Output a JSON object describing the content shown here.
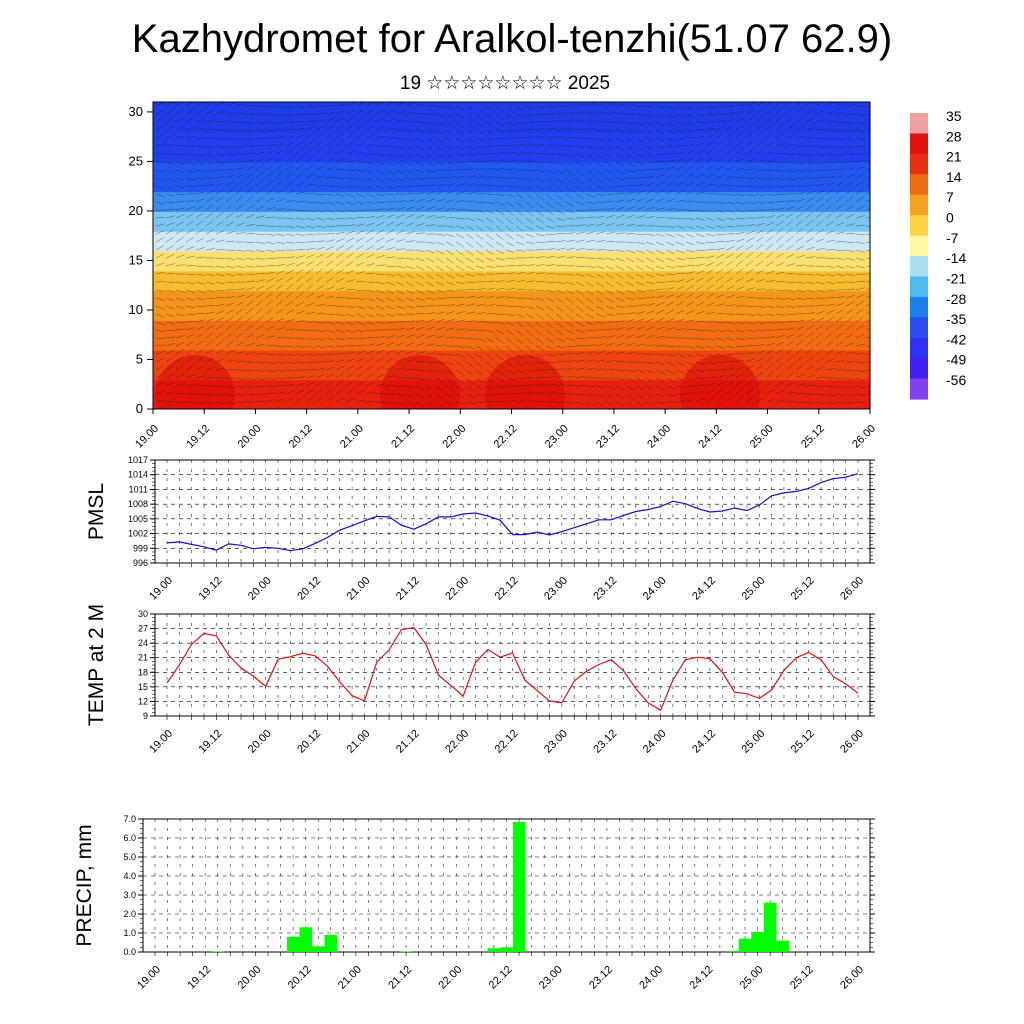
{
  "title": "Kazhydromet for Aralkol-tenzhi(51.07 62.9)",
  "subtitle": "19 ☆☆☆☆☆☆☆☆ 2025",
  "chart_data": [
    {
      "type": "heatmap",
      "description_units": "temperature contours with wind barbs",
      "ylim": [
        0,
        31
      ],
      "y_ticks": [
        0,
        5,
        10,
        15,
        20,
        25,
        30
      ],
      "x_ticks": [
        "19.00",
        "19.12",
        "20.00",
        "20.12",
        "21.00",
        "21.12",
        "22.00",
        "22.12",
        "23.00",
        "23.12",
        "24.00",
        "24.12",
        "25.00",
        "25.12",
        "26.00"
      ],
      "colorbar_labels": [
        "35",
        "28",
        "21",
        "14",
        "7",
        "0",
        "-7",
        "-14",
        "-21",
        "-28",
        "-35",
        "-42",
        "-49",
        "-56"
      ],
      "colorbar_colors": [
        "#f0a0a0",
        "#e01010",
        "#e83010",
        "#ee6a10",
        "#f8a020",
        "#fcd040",
        "#fff8a0",
        "#a8e0f0",
        "#50b8f0",
        "#1a80ee",
        "#2a4ef0",
        "#3030f0",
        "#4020f0",
        "#8040f0"
      ]
    },
    {
      "type": "line",
      "ylabel": "PMSL",
      "ylim": [
        996,
        1017
      ],
      "y_ticks": [
        "996",
        "999",
        "1002",
        "1005",
        "1008",
        "1011",
        "1014",
        "1017"
      ],
      "x_ticks": [
        "19.00",
        "19.12",
        "20.00",
        "20.12",
        "21.00",
        "21.12",
        "22.00",
        "22.12",
        "23.00",
        "23.12",
        "24.00",
        "24.12",
        "25.00",
        "25.12",
        "26.00"
      ],
      "color": "#1010d0",
      "values": [
        1000.1,
        1000.3,
        999.8,
        999.3,
        998.6,
        999.9,
        999.6,
        998.9,
        999.2,
        999.0,
        998.5,
        998.9,
        1000.0,
        1001.2,
        1002.7,
        1003.6,
        1004.6,
        1005.5,
        1005.4,
        1003.7,
        1002.9,
        1004.0,
        1005.4,
        1005.4,
        1006.0,
        1006.2,
        1005.6,
        1004.7,
        1001.8,
        1001.8,
        1002.3,
        1001.7,
        1002.4,
        1003.2,
        1004.0,
        1004.8,
        1004.8,
        1005.7,
        1006.5,
        1006.9,
        1007.5,
        1008.6,
        1008.1,
        1007.1,
        1006.4,
        1006.6,
        1007.2,
        1006.7,
        1007.8,
        1009.7,
        1010.3,
        1010.6,
        1011.2,
        1012.4,
        1013.2,
        1013.5,
        1014.2
      ]
    },
    {
      "type": "line",
      "ylabel": "TEMP at 2 M",
      "ylim": [
        9,
        30
      ],
      "y_ticks": [
        "9",
        "12",
        "15",
        "18",
        "21",
        "24",
        "27",
        "30"
      ],
      "x_ticks": [
        "19.00",
        "19.12",
        "20.00",
        "20.12",
        "21.00",
        "21.12",
        "22.00",
        "22.12",
        "23.00",
        "23.12",
        "24.00",
        "24.12",
        "25.00",
        "25.12",
        "26.00"
      ],
      "color": "#e01010",
      "values": [
        15.8,
        19.5,
        23.8,
        26.0,
        25.5,
        21.5,
        18.9,
        17.2,
        15.1,
        20.7,
        21.2,
        21.9,
        21.4,
        19.3,
        16.0,
        13.2,
        12.1,
        20.1,
        22.6,
        26.8,
        27.2,
        23.7,
        17.4,
        15.3,
        13.1,
        20.0,
        22.7,
        21.1,
        22.0,
        16.4,
        14.2,
        12.1,
        11.7,
        16.2,
        18.2,
        19.6,
        20.6,
        18.3,
        14.6,
        11.7,
        10.2,
        16.4,
        20.6,
        21.1,
        20.8,
        18.0,
        13.9,
        13.6,
        12.6,
        14.4,
        18.4,
        21.0,
        22.1,
        20.6,
        17.1,
        15.6,
        13.7
      ]
    },
    {
      "type": "bar",
      "ylabel": "PRECIP, mm",
      "ylim": [
        0,
        7
      ],
      "y_ticks": [
        "0.0",
        "1.0",
        "2.0",
        "3.0",
        "4.0",
        "5.0",
        "6.0",
        "7.0"
      ],
      "x_ticks": [
        "19.00",
        "19.12",
        "20.00",
        "20.12",
        "21.00",
        "21.12",
        "22.00",
        "22.12",
        "23.00",
        "23.12",
        "24.00",
        "24.12",
        "25.00",
        "25.12",
        "26.00"
      ],
      "color": "#00ff00",
      "values": [
        0,
        0,
        0,
        0,
        0,
        0.02,
        0,
        0,
        0,
        0,
        0,
        0.8,
        1.3,
        0.3,
        0.9,
        0,
        0,
        0,
        0,
        0,
        0.02,
        0,
        0,
        0,
        0,
        0,
        0,
        0.2,
        0.25,
        6.85,
        0,
        0,
        0,
        0,
        0,
        0,
        0,
        0,
        0,
        0,
        0,
        0,
        0,
        0,
        0,
        0,
        0.05,
        0.7,
        1.05,
        2.6,
        0.6,
        0,
        0,
        0,
        0,
        0,
        0
      ]
    }
  ]
}
